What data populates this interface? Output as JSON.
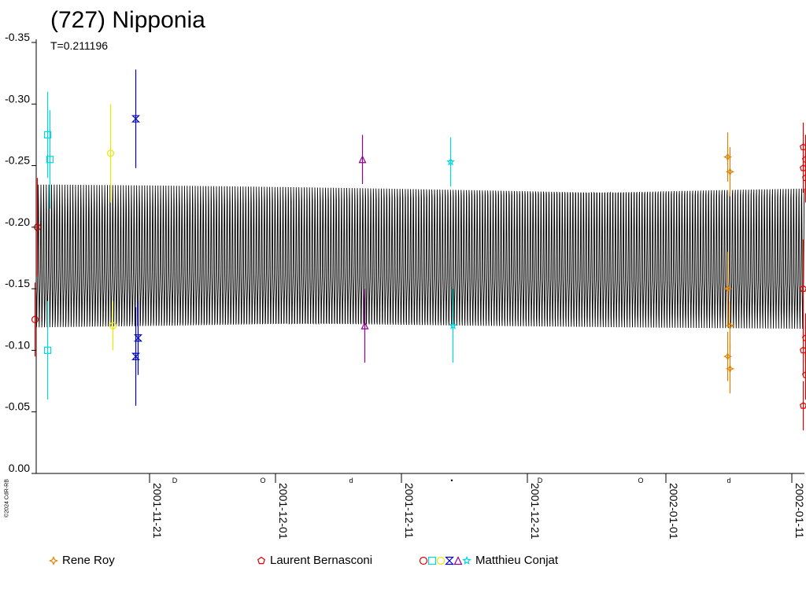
{
  "chart_data": {
    "type": "scatter",
    "title": "(727) Nipponia",
    "subtitle": "T=0.211196",
    "y_axis": {
      "inverted": true,
      "range": [
        0.0,
        -0.35
      ],
      "ticks": [
        {
          "value": -0.35,
          "label": "-0.35"
        },
        {
          "value": -0.3,
          "label": "-0.30"
        },
        {
          "value": -0.25,
          "label": "-0.25"
        },
        {
          "value": -0.2,
          "label": "-0.20"
        },
        {
          "value": -0.15,
          "label": "-0.15"
        },
        {
          "value": -0.1,
          "label": "-0.10"
        },
        {
          "value": -0.05,
          "label": "-0.05"
        },
        {
          "value": 0.0,
          "label": "0.00"
        }
      ]
    },
    "x_axis": {
      "type": "date",
      "range": [
        "2001-11-12",
        "2002-01-12"
      ],
      "ticks": [
        "2001-11-21",
        "2001-12-01",
        "2001-12-11",
        "2001-12-21",
        "2002-01-01",
        "2002-01-11"
      ]
    },
    "model_curve": {
      "period_days": 0.211196,
      "mean": -0.185,
      "amplitude_high": -0.238,
      "amplitude_low": -0.098,
      "color": "#000000"
    },
    "moon_phases": [
      {
        "date": "2001-11-23",
        "symbol": "D"
      },
      {
        "date": "2001-11-30",
        "symbol": "O"
      },
      {
        "date": "2001-12-07",
        "symbol": "d"
      },
      {
        "date": "2001-12-15",
        "symbol": "•"
      },
      {
        "date": "2001-12-22",
        "symbol": "D"
      },
      {
        "date": "2001-12-30",
        "symbol": "O"
      },
      {
        "date": "2002-01-06",
        "symbol": "d"
      }
    ],
    "side_note": "©2024 CdR-RB",
    "series": [
      {
        "name": "",
        "color": "#e00000",
        "symbol": "circle",
        "points": [
          {
            "date": "2001-11-12",
            "y": -0.125,
            "err": 0.03
          },
          {
            "date": "2001-11-12",
            "y": -0.2,
            "err": 0.04
          }
        ]
      },
      {
        "name": "",
        "color": "#00d8e0",
        "symbol": "square",
        "points": [
          {
            "date": "2001-11-13",
            "y": -0.275,
            "err": 0.035
          },
          {
            "date": "2001-11-13",
            "y": -0.255,
            "err": 0.04
          },
          {
            "date": "2001-11-13",
            "y": -0.1,
            "err": 0.04
          }
        ]
      },
      {
        "name": "",
        "color": "#e8e800",
        "symbol": "circle",
        "points": [
          {
            "date": "2001-11-18",
            "y": -0.26,
            "err": 0.04
          },
          {
            "date": "2001-11-18",
            "y": -0.12,
            "err": 0.02
          }
        ]
      },
      {
        "name": "",
        "color": "#0000c0",
        "symbol": "bowtie",
        "points": [
          {
            "date": "2001-11-20",
            "y": -0.288,
            "err": 0.04
          },
          {
            "date": "2001-11-20",
            "y": -0.11,
            "err": 0.03
          },
          {
            "date": "2001-11-20",
            "y": -0.095,
            "err": 0.04
          }
        ]
      },
      {
        "name": "",
        "color": "#900090",
        "symbol": "triangle",
        "points": [
          {
            "date": "2001-12-08",
            "y": -0.255,
            "err": 0.02
          },
          {
            "date": "2001-12-08",
            "y": -0.12,
            "err": 0.03
          }
        ]
      },
      {
        "name": "",
        "color": "#00d8e0",
        "symbol": "star",
        "points": [
          {
            "date": "2001-12-15",
            "y": -0.253,
            "err": 0.02
          },
          {
            "date": "2001-12-15",
            "y": -0.12,
            "err": 0.03
          }
        ]
      },
      {
        "name": "Rene Roy",
        "color": "#e08000",
        "symbol": "cross4",
        "points": [
          {
            "date": "2002-01-06",
            "y": -0.257,
            "err": 0.02
          },
          {
            "date": "2002-01-06",
            "y": -0.245,
            "err": 0.02
          },
          {
            "date": "2002-01-06",
            "y": -0.15,
            "err": 0.03
          },
          {
            "date": "2002-01-06",
            "y": -0.12,
            "err": 0.02
          },
          {
            "date": "2002-01-06",
            "y": -0.095,
            "err": 0.02
          },
          {
            "date": "2002-01-06",
            "y": -0.085,
            "err": 0.02
          }
        ]
      },
      {
        "name": "Laurent Bernasconi",
        "color": "#e00000",
        "symbol": "pentagon",
        "points": [
          {
            "date": "2002-01-12",
            "y": -0.265,
            "err": 0.02
          },
          {
            "date": "2002-01-12",
            "y": -0.255,
            "err": 0.02
          },
          {
            "date": "2002-01-12",
            "y": -0.248,
            "err": 0.02
          },
          {
            "date": "2002-01-12",
            "y": -0.24,
            "err": 0.02
          },
          {
            "date": "2002-01-12",
            "y": -0.15,
            "err": 0.04
          },
          {
            "date": "2002-01-12",
            "y": -0.11,
            "err": 0.02
          },
          {
            "date": "2002-01-12",
            "y": -0.1,
            "err": 0.02
          },
          {
            "date": "2002-01-12",
            "y": -0.08,
            "err": 0.02
          },
          {
            "date": "2002-01-12",
            "y": -0.055,
            "err": 0.02
          }
        ]
      },
      {
        "name": "Matthieu Conjat",
        "color": "#00d8e0",
        "symbol": "multi",
        "points": []
      }
    ],
    "legend": [
      {
        "label": "Rene Roy",
        "symbols": [
          {
            "shape": "cross4",
            "color": "#e08000"
          }
        ]
      },
      {
        "label": "Laurent Bernasconi",
        "symbols": [
          {
            "shape": "pentagon",
            "color": "#e00000"
          }
        ]
      },
      {
        "label": "Matthieu Conjat",
        "symbols": [
          {
            "shape": "circle",
            "color": "#e00000"
          },
          {
            "shape": "square",
            "color": "#00d8e0"
          },
          {
            "shape": "circle",
            "color": "#e8e800"
          },
          {
            "shape": "bowtie",
            "color": "#0000c0"
          },
          {
            "shape": "triangle",
            "color": "#900090"
          },
          {
            "shape": "star",
            "color": "#00d8e0"
          }
        ]
      }
    ],
    "grid": false,
    "legend_position": "bottom"
  }
}
